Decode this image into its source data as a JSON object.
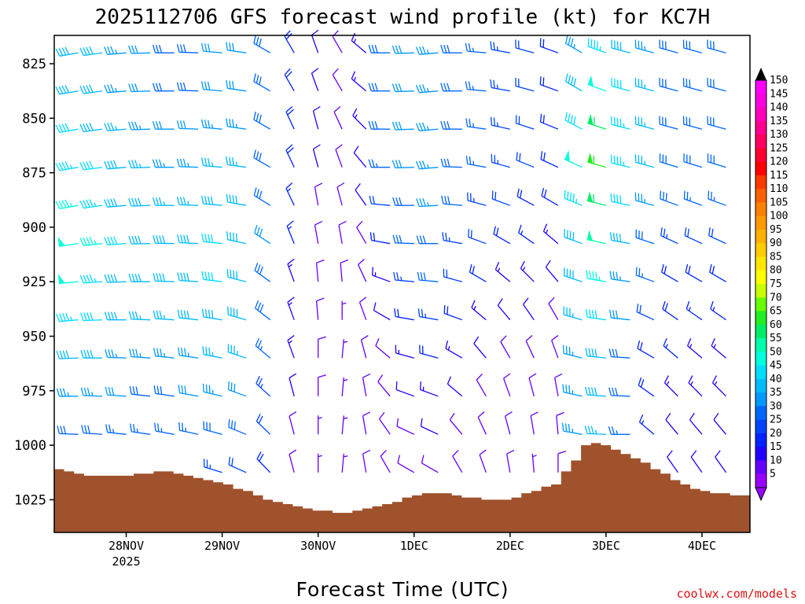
{
  "page": {
    "title": "2025112706 GFS forecast wind profile (kt) for KC7H",
    "credit": "coolwx.com/models"
  },
  "colors": {
    "terrain": "#a0522d",
    "frame": "#000000",
    "background": "#ffffff"
  },
  "chart_data": {
    "type": "wind-barb-profile",
    "title": "2025112706 GFS forecast wind profile (kt) for KC7H",
    "xlabel": "Forecast Time (UTC)",
    "ylabel": "",
    "units": "kt",
    "y_range_hpa": [
      1040,
      812
    ],
    "x_range_hours": [
      0,
      174
    ],
    "y_ticks": [
      {
        "label": "825",
        "value": 825
      },
      {
        "label": "850",
        "value": 850
      },
      {
        "label": "875",
        "value": 875
      },
      {
        "label": "900",
        "value": 900
      },
      {
        "label": "925",
        "value": 925
      },
      {
        "label": "950",
        "value": 950
      },
      {
        "label": "975",
        "value": 975
      },
      {
        "label": "1000",
        "value": 1000
      },
      {
        "label": "1025",
        "value": 1025
      }
    ],
    "x_ticks": [
      {
        "label": "28NOV",
        "sublabel": "2025",
        "hour": 18
      },
      {
        "label": "29NOV",
        "sublabel": "",
        "hour": 42
      },
      {
        "label": "30NOV",
        "sublabel": "",
        "hour": 66
      },
      {
        "label": "1DEC",
        "sublabel": "",
        "hour": 90
      },
      {
        "label": "2DEC",
        "sublabel": "",
        "hour": 114
      },
      {
        "label": "3DEC",
        "sublabel": "",
        "hour": 138
      },
      {
        "label": "4DEC",
        "sublabel": "",
        "hour": 162
      }
    ],
    "colorbar": {
      "labels": [
        "150",
        "145",
        "140",
        "135",
        "130",
        "125",
        "120",
        "115",
        "110",
        "105",
        "100",
        "95",
        "90",
        "85",
        "80",
        "75",
        "70",
        "65",
        "60",
        "55",
        "50",
        "45",
        "40",
        "35",
        "30",
        "25",
        "20",
        "15",
        "10",
        "5"
      ],
      "colors": [
        "#ff00ff",
        "#ff00e0",
        "#ff00bb",
        "#ff0090",
        "#ff0060",
        "#ff0030",
        "#ff0000",
        "#ff3a00",
        "#ff6000",
        "#ff8000",
        "#ff9900",
        "#ffb000",
        "#ffcc00",
        "#ffe600",
        "#ffff00",
        "#c8ff00",
        "#66ff00",
        "#22ee22",
        "#00ee66",
        "#00ffaa",
        "#00ffdd",
        "#00ddff",
        "#00bbff",
        "#0099ff",
        "#0066ff",
        "#0044ff",
        "#0022ff",
        "#2200ff",
        "#6600ff",
        "#9900ff"
      ]
    },
    "surface_pressure_hpa": [
      1011,
      1012,
      1013,
      1014,
      1014,
      1014,
      1014,
      1014,
      1013,
      1013,
      1012,
      1012,
      1013,
      1014,
      1015,
      1016,
      1017,
      1018,
      1020,
      1021,
      1023,
      1025,
      1026,
      1027,
      1028,
      1029,
      1030,
      1030,
      1031,
      1031,
      1030,
      1029,
      1028,
      1027,
      1026,
      1024,
      1023,
      1022,
      1022,
      1022,
      1023,
      1024,
      1024,
      1025,
      1025,
      1025,
      1024,
      1022,
      1021,
      1019,
      1018,
      1012,
      1007,
      1000,
      999,
      1000,
      1002,
      1004,
      1006,
      1008,
      1011,
      1013,
      1016,
      1018,
      1020,
      1021,
      1022,
      1022,
      1023,
      1023
    ],
    "wind_profiles": [
      {
        "hour": 0,
        "speeds": [
          30,
          28,
          27,
          25,
          24,
          24,
          23,
          22,
          22,
          21,
          20,
          20
        ],
        "dirs": [
          255,
          255,
          255,
          255,
          255,
          255,
          255,
          255,
          255,
          255,
          255,
          255
        ]
      },
      {
        "hour": 6,
        "speeds": [
          40,
          40,
          42,
          45,
          47,
          49,
          48,
          45,
          40,
          35,
          30,
          24
        ],
        "dirs": [
          260,
          260,
          260,
          260,
          260,
          262,
          265,
          265,
          268,
          270,
          272,
          275
        ]
      },
      {
        "hour": 12,
        "speeds": [
          38,
          38,
          40,
          42,
          44,
          46,
          45,
          42,
          38,
          33,
          28,
          22
        ],
        "dirs": [
          262,
          262,
          262,
          262,
          262,
          264,
          266,
          268,
          270,
          272,
          274,
          276
        ]
      },
      {
        "hour": 18,
        "speeds": [
          35,
          35,
          37,
          39,
          40,
          41,
          40,
          38,
          35,
          31,
          27,
          22
        ],
        "dirs": [
          265,
          265,
          265,
          265,
          265,
          266,
          268,
          270,
          272,
          274,
          276,
          278
        ]
      },
      {
        "hour": 24,
        "speeds": [
          32,
          32,
          34,
          36,
          38,
          39,
          38,
          36,
          34,
          30,
          26,
          21
        ],
        "dirs": [
          268,
          268,
          268,
          268,
          268,
          269,
          270,
          272,
          274,
          276,
          278,
          280
        ]
      },
      {
        "hour": 30,
        "speeds": [
          30,
          30,
          32,
          34,
          36,
          38,
          38,
          36,
          33,
          30,
          26,
          21
        ],
        "dirs": [
          270,
          270,
          270,
          270,
          270,
          271,
          272,
          274,
          276,
          278,
          280,
          282
        ]
      },
      {
        "hour": 36,
        "speeds": [
          30,
          30,
          32,
          35,
          37,
          40,
          40,
          38,
          35,
          31,
          27,
          22
        ],
        "dirs": [
          272,
          272,
          272,
          272,
          272,
          273,
          274,
          276,
          278,
          280,
          282,
          284
        ]
      },
      {
        "hour": 42,
        "speeds": [
          32,
          32,
          34,
          37,
          40,
          42,
          42,
          40,
          37,
          33,
          28,
          23
        ],
        "dirs": [
          275,
          275,
          275,
          275,
          275,
          276,
          277,
          279,
          281,
          283,
          285,
          287
        ]
      },
      {
        "hour": 48,
        "speeds": [
          32,
          32,
          34,
          36,
          38,
          40,
          40,
          38,
          36,
          32,
          28,
          22
        ],
        "dirs": [
          278,
          278,
          278,
          278,
          280,
          282,
          284,
          286,
          288,
          290,
          292,
          294
        ]
      },
      {
        "hour": 54,
        "speeds": [
          28,
          28,
          30,
          30,
          30,
          31,
          30,
          28,
          26,
          24,
          22,
          20
        ],
        "dirs": [
          300,
          300,
          300,
          300,
          302,
          304,
          306,
          308,
          310,
          312,
          314,
          316
        ]
      },
      {
        "hour": 60,
        "speeds": [
          18,
          18,
          18,
          18,
          17,
          16,
          15,
          14,
          13,
          12,
          10,
          10
        ],
        "dirs": [
          330,
          330,
          335,
          335,
          335,
          338,
          340,
          340,
          340,
          345,
          345,
          345
        ]
      },
      {
        "hour": 66,
        "speeds": [
          12,
          12,
          12,
          11,
          10,
          10,
          10,
          9,
          8,
          8,
          7,
          7
        ],
        "dirs": [
          340,
          340,
          345,
          345,
          350,
          350,
          355,
          355,
          0,
          0,
          0,
          0
        ]
      },
      {
        "hour": 72,
        "speeds": [
          10,
          10,
          10,
          9,
          9,
          8,
          8,
          7,
          7,
          6,
          6,
          6
        ],
        "dirs": [
          330,
          330,
          335,
          340,
          345,
          350,
          355,
          0,
          5,
          5,
          5,
          5
        ]
      },
      {
        "hour": 78,
        "speeds": [
          15,
          14,
          13,
          12,
          11,
          10,
          10,
          9,
          9,
          8,
          8,
          8
        ],
        "dirs": [
          310,
          310,
          315,
          320,
          325,
          330,
          335,
          340,
          345,
          350,
          350,
          350
        ]
      },
      {
        "hour": 84,
        "speeds": [
          30,
          30,
          28,
          26,
          22,
          18,
          15,
          12,
          10,
          10,
          10,
          10
        ],
        "dirs": [
          270,
          270,
          270,
          270,
          275,
          280,
          290,
          300,
          310,
          320,
          325,
          330
        ]
      },
      {
        "hour": 90,
        "speeds": [
          32,
          32,
          32,
          32,
          30,
          28,
          25,
          20,
          15,
          12,
          10,
          10
        ],
        "dirs": [
          268,
          268,
          268,
          268,
          270,
          272,
          275,
          280,
          285,
          290,
          295,
          300
        ]
      },
      {
        "hour": 96,
        "speeds": [
          34,
          34,
          35,
          35,
          33,
          30,
          28,
          24,
          18,
          15,
          12,
          10
        ],
        "dirs": [
          265,
          265,
          265,
          265,
          267,
          270,
          275,
          280,
          285,
          290,
          295,
          300
        ]
      },
      {
        "hour": 102,
        "speeds": [
          30,
          30,
          30,
          30,
          28,
          25,
          22,
          18,
          14,
          12,
          10,
          8
        ],
        "dirs": [
          270,
          270,
          270,
          272,
          275,
          280,
          285,
          290,
          300,
          310,
          320,
          330
        ]
      },
      {
        "hour": 108,
        "speeds": [
          26,
          26,
          26,
          26,
          24,
          22,
          18,
          14,
          12,
          10,
          8,
          8
        ],
        "dirs": [
          275,
          275,
          278,
          280,
          285,
          290,
          300,
          310,
          320,
          330,
          335,
          340
        ]
      },
      {
        "hour": 114,
        "speeds": [
          24,
          24,
          24,
          24,
          22,
          18,
          15,
          12,
          10,
          8,
          8,
          8
        ],
        "dirs": [
          280,
          280,
          282,
          285,
          290,
          300,
          310,
          320,
          330,
          340,
          345,
          350
        ]
      },
      {
        "hour": 120,
        "speeds": [
          22,
          22,
          22,
          22,
          20,
          16,
          13,
          11,
          9,
          8,
          8,
          7
        ],
        "dirs": [
          285,
          285,
          288,
          292,
          298,
          305,
          315,
          325,
          335,
          345,
          350,
          355
        ]
      },
      {
        "hour": 126,
        "speeds": [
          20,
          20,
          20,
          20,
          18,
          15,
          12,
          10,
          9,
          8,
          8,
          8
        ],
        "dirs": [
          290,
          290,
          292,
          295,
          300,
          310,
          320,
          330,
          340,
          350,
          355,
          0
        ]
      },
      {
        "hour": 132,
        "speeds": [
          35,
          38,
          42,
          48,
          45,
          40,
          38,
          36,
          35,
          34,
          33,
          32
        ],
        "dirs": [
          300,
          300,
          298,
          295,
          292,
          290,
          288,
          286,
          284,
          282,
          280,
          280
        ]
      },
      {
        "hour": 138,
        "speeds": [
          45,
          50,
          58,
          62,
          58,
          52,
          46,
          42,
          40,
          38,
          36,
          34
        ],
        "dirs": [
          290,
          290,
          288,
          286,
          284,
          282,
          280,
          278,
          276,
          274,
          272,
          270
        ]
      },
      {
        "hour": 144,
        "speeds": [
          40,
          42,
          44,
          45,
          42,
          38,
          35,
          32,
          30,
          28,
          26,
          25
        ],
        "dirs": [
          285,
          285,
          284,
          283,
          282,
          280,
          278,
          276,
          274,
          272,
          270,
          268
        ]
      },
      {
        "hour": 150,
        "speeds": [
          35,
          36,
          36,
          36,
          34,
          30,
          26,
          22,
          20,
          18,
          16,
          15
        ],
        "dirs": [
          285,
          285,
          285,
          285,
          285,
          288,
          290,
          295,
          300,
          305,
          310,
          315
        ]
      },
      {
        "hour": 156,
        "speeds": [
          30,
          30,
          30,
          30,
          28,
          24,
          20,
          18,
          16,
          14,
          12,
          12
        ],
        "dirs": [
          285,
          285,
          285,
          287,
          290,
          295,
          300,
          305,
          310,
          315,
          320,
          325
        ]
      },
      {
        "hour": 162,
        "speeds": [
          28,
          28,
          28,
          28,
          26,
          22,
          19,
          17,
          15,
          14,
          12,
          12
        ],
        "dirs": [
          285,
          285,
          285,
          287,
          290,
          295,
          300,
          305,
          310,
          315,
          320,
          325
        ]
      },
      {
        "hour": 168,
        "speeds": [
          28,
          28,
          28,
          28,
          26,
          22,
          19,
          17,
          15,
          14,
          12,
          12
        ],
        "dirs": [
          285,
          285,
          285,
          287,
          290,
          295,
          300,
          305,
          310,
          315,
          320,
          325
        ]
      }
    ]
  }
}
